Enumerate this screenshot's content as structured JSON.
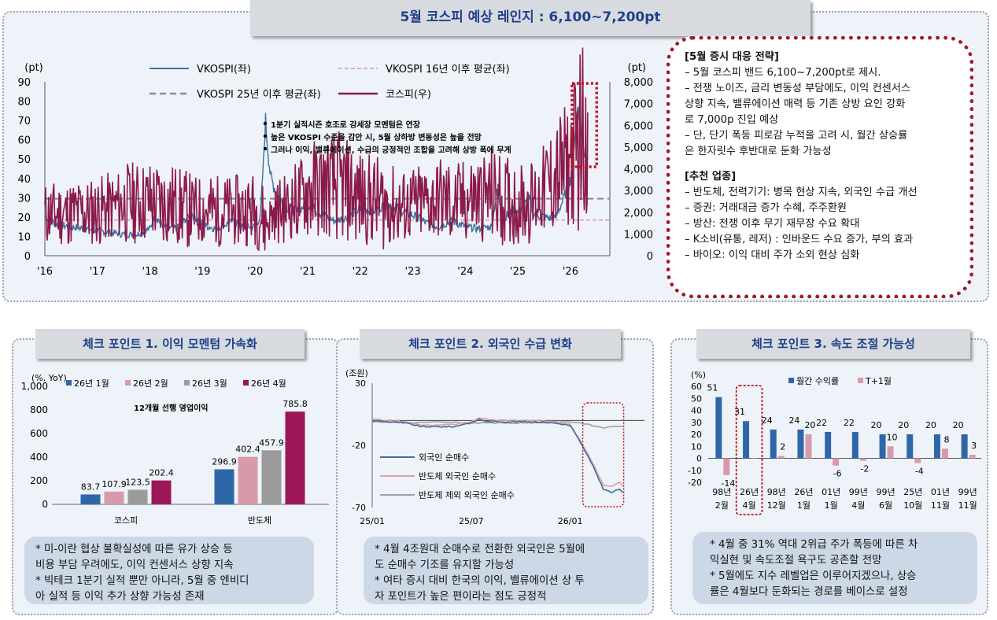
{
  "main_title": "5월 코스피 예상 레인지 : 6,100~7,200pt",
  "strategy": {
    "title": "[5월 증시 대응 전략]",
    "lines": [
      "– 5월 코스피 밴드 6,100~7,200pt로 제시.",
      "– 전쟁 노이즈, 금리 변동성 부담에도, 이익 컨센서스",
      "상향 지속, 밸류에이션 매력 등 기존 상방 요인 강화",
      "로 7,000p 진입 예상",
      "– 단, 단기 폭등 피로감 누적을 고려 시, 월간 상승률",
      "은 한자릿수 후반대로 둔화 가능성"
    ],
    "sector_title": "[추천 업종]",
    "sectors": [
      "– 반도체, 전력기기: 병목 현상 지속, 외국인 수급 개선",
      "– 증권: 거래대금 증가 수혜, 주주환원",
      "– 방산: 전쟁 이후 무기 재무장 수요 확대",
      "– K소비(유통, 레저) : 인바운드 수요 증가, 부의 효과",
      "– 바이오: 이익 대비 주가 소외 현상 심화"
    ]
  },
  "panels": [
    {
      "title": "체크 포인트 1. 이익 모멘텀 가속화",
      "notes": [
        "* 미-이란 협상 불확실성에 따른 유가 상승 등",
        "비용 부담 우려에도, 이익 컨센서스 상향 지속",
        "* 빅테크 1분기 실적 뿐만 아니라, 5월 중 엔비디",
        "아 실적 등 이익 추가 상향 가능성 존재"
      ]
    },
    {
      "title": "체크 포인트 2. 외국인 수급 변화",
      "notes": [
        "* 4월 4조원대 순매수로 전환한 외국인은 5월에",
        "도 순매수 기조를 유지할 가능성",
        "* 여타 증시 대비 한국의 이익, 밸류에이션 상 투",
        "자 포인트가 높은 편이라는 점도 긍정적"
      ]
    },
    {
      "title": "체크 포인트 3. 속도 조절 가능성",
      "notes": [
        "* 4월 중 31% 역대 2위급 주가 폭등에 따른 차",
        "익실현 및 속도조절 욕구도 공존할 전망",
        "* 5월에도 지수 레벨업은 이루어지겠으나, 상승",
        "률은 4월보다 둔화되는 경로를 베이스로 설정"
      ]
    }
  ],
  "chart_data": [
    {
      "type": "line",
      "left_unit": "(pt)",
      "right_unit": "(pt)",
      "left_ticks": [
        "0",
        "10",
        "20",
        "30",
        "40",
        "50",
        "60",
        "70",
        "80",
        "90"
      ],
      "right_ticks": [
        "0",
        "1,000",
        "2,000",
        "3,000",
        "4,000",
        "5,000",
        "6,000",
        "7,000",
        "8,000"
      ],
      "ylim_left": [
        0,
        90
      ],
      "ylim_right": [
        0,
        8000
      ],
      "x_ticks": [
        "'16",
        "'17",
        "'18",
        "'19",
        "'20",
        "'21",
        "'22",
        "'23",
        "'24",
        "'25",
        "'26"
      ],
      "legend": [
        "VKOSPI(좌)",
        "VKOSPI 16년 이후 평균(좌)",
        "VKOSPI 25년 이후 평균(좌)",
        "코스피(우)"
      ],
      "annotations": [
        "1분기 실적시즌 호조로 강세장 모멘텀은 연장",
        "높은 VKOSPI 수준을 감안 시, 5월 상하방 변동성은 높을 전망",
        "그러나 이익, 밸류에이션, 수급의 긍정적인 조합을 고려해 상방 폭에 무게"
      ],
      "averages": {
        "vkospi_since_2016": 18.5,
        "vkospi_since_2025": 29.5
      },
      "series": [
        {
          "name": "VKOSPI(좌)",
          "axis": "left",
          "points": [
            [
              2016.0,
              20
            ],
            [
              2016.25,
              16
            ],
            [
              2016.5,
              15
            ],
            [
              2016.75,
              14
            ],
            [
              2017.0,
              13
            ],
            [
              2017.25,
              12
            ],
            [
              2017.5,
              11
            ],
            [
              2017.75,
              11
            ],
            [
              2018.0,
              14
            ],
            [
              2018.1,
              21
            ],
            [
              2018.25,
              15
            ],
            [
              2018.5,
              14
            ],
            [
              2018.8,
              22
            ],
            [
              2019.0,
              16
            ],
            [
              2019.25,
              14
            ],
            [
              2019.6,
              18
            ],
            [
              2019.75,
              15
            ],
            [
              2020.0,
              15
            ],
            [
              2020.1,
              20
            ],
            [
              2020.2,
              69
            ],
            [
              2020.3,
              40
            ],
            [
              2020.45,
              30
            ],
            [
              2020.6,
              25
            ],
            [
              2020.8,
              23
            ],
            [
              2021.0,
              27
            ],
            [
              2021.25,
              22
            ],
            [
              2021.5,
              18
            ],
            [
              2021.75,
              20
            ],
            [
              2022.0,
              24
            ],
            [
              2022.25,
              23
            ],
            [
              2022.5,
              27
            ],
            [
              2022.75,
              24
            ],
            [
              2023.0,
              21
            ],
            [
              2023.25,
              17
            ],
            [
              2023.5,
              15
            ],
            [
              2023.75,
              18
            ],
            [
              2024.0,
              15
            ],
            [
              2024.25,
              14
            ],
            [
              2024.5,
              15
            ],
            [
              2024.6,
              32
            ],
            [
              2024.75,
              20
            ],
            [
              2024.95,
              25
            ],
            [
              2025.0,
              22
            ],
            [
              2025.2,
              30
            ],
            [
              2025.3,
              22
            ],
            [
              2025.5,
              20
            ],
            [
              2025.7,
              19
            ],
            [
              2025.85,
              28
            ],
            [
              2026.0,
              40
            ],
            [
              2026.15,
              80
            ],
            [
              2026.25,
              55
            ],
            [
              2026.33,
              50
            ]
          ]
        },
        {
          "name": "코스피(우)",
          "axis": "right",
          "points": [
            [
              2016.0,
              1900
            ],
            [
              2016.5,
              1980
            ],
            [
              2017.0,
              2050
            ],
            [
              2017.5,
              2400
            ],
            [
              2018.0,
              2500
            ],
            [
              2018.5,
              2300
            ],
            [
              2018.8,
              2050
            ],
            [
              2019.0,
              2100
            ],
            [
              2019.5,
              2050
            ],
            [
              2019.75,
              2100
            ],
            [
              2020.0,
              2200
            ],
            [
              2020.2,
              1500
            ],
            [
              2020.4,
              2000
            ],
            [
              2020.75,
              2400
            ],
            [
              2021.0,
              3000
            ],
            [
              2021.5,
              3250
            ],
            [
              2021.75,
              3000
            ],
            [
              2022.0,
              2700
            ],
            [
              2022.5,
              2350
            ],
            [
              2022.75,
              2200
            ],
            [
              2023.0,
              2300
            ],
            [
              2023.5,
              2600
            ],
            [
              2023.8,
              2350
            ],
            [
              2024.0,
              2600
            ],
            [
              2024.5,
              2750
            ],
            [
              2024.75,
              2550
            ],
            [
              2024.95,
              2400
            ],
            [
              2025.3,
              2500
            ],
            [
              2025.5,
              3100
            ],
            [
              2025.75,
              3600
            ],
            [
              2026.0,
              4300
            ],
            [
              2026.15,
              5300
            ],
            [
              2026.2,
              5900
            ],
            [
              2026.25,
              5300
            ],
            [
              2026.33,
              6600
            ]
          ]
        }
      ]
    },
    {
      "type": "bar",
      "unit": "(%, YoY)",
      "subtitle": "12개월 선행 영업이익",
      "categories": [
        "코스피",
        "반도체"
      ],
      "ylim": [
        0,
        1000
      ],
      "y_ticks": [
        "0",
        "200",
        "400",
        "600",
        "800",
        "1,000"
      ],
      "series": [
        {
          "name": "26년 1월",
          "values": [
            83.7,
            296.9
          ],
          "labels": [
            "83.7",
            "296.9"
          ]
        },
        {
          "name": "26년 2월",
          "values": [
            107.9,
            402.4
          ],
          "labels": [
            "107.9",
            "402.4"
          ]
        },
        {
          "name": "26년 3월",
          "values": [
            123.5,
            457.9
          ],
          "labels": [
            "123.5",
            "457.9"
          ]
        },
        {
          "name": "26년 4월",
          "values": [
            202.4,
            785.8
          ],
          "labels": [
            "202.4",
            "785.8"
          ]
        }
      ]
    },
    {
      "type": "line",
      "unit": "(조원)",
      "ylim": [
        -70,
        30
      ],
      "y_ticks": [
        "-70",
        "-20",
        "30"
      ],
      "x_ticks": [
        "25/01",
        "25/07",
        "26/01"
      ],
      "series": [
        {
          "name": "외국인 순매수",
          "points": [
            [
              0,
              0
            ],
            [
              1,
              -1
            ],
            [
              2,
              -2
            ],
            [
              3,
              -5
            ],
            [
              4,
              -5
            ],
            [
              5,
              -5
            ],
            [
              5.5,
              -3
            ],
            [
              6,
              -2
            ],
            [
              6.5,
              1
            ],
            [
              7,
              -1
            ],
            [
              8,
              -1
            ],
            [
              9,
              -1
            ],
            [
              10,
              -1
            ],
            [
              11,
              -2
            ],
            [
              12,
              -4
            ],
            [
              12.5,
              -15
            ],
            [
              13,
              -27
            ],
            [
              13.5,
              -40
            ],
            [
              14,
              -55
            ],
            [
              14.5,
              -58
            ],
            [
              15,
              -55
            ],
            [
              15.2,
              -58
            ]
          ]
        },
        {
          "name": "반도체 외국인 순매수",
          "points": [
            [
              0,
              1
            ],
            [
              1,
              0
            ],
            [
              2,
              -1
            ],
            [
              3,
              -4
            ],
            [
              4,
              -4
            ],
            [
              5,
              -3
            ],
            [
              5.5,
              -2
            ],
            [
              6,
              -1
            ],
            [
              6.5,
              2
            ],
            [
              7,
              1
            ],
            [
              8,
              0
            ],
            [
              9,
              0
            ],
            [
              10,
              0
            ],
            [
              11,
              -1
            ],
            [
              12,
              -3
            ],
            [
              12.5,
              -14
            ],
            [
              13,
              -25
            ],
            [
              13.5,
              -38
            ],
            [
              14,
              -52
            ],
            [
              14.5,
              -53
            ],
            [
              15,
              -50
            ],
            [
              15.2,
              -53
            ]
          ]
        },
        {
          "name": "반도체 제외 외국인 순매수",
          "points": [
            [
              0,
              -1
            ],
            [
              2,
              -2
            ],
            [
              4,
              -1
            ],
            [
              6,
              -2
            ],
            [
              8,
              -2
            ],
            [
              10,
              -2
            ],
            [
              11,
              -1
            ],
            [
              12,
              -1
            ],
            [
              13,
              -3
            ],
            [
              14,
              -6
            ],
            [
              14.5,
              -5
            ],
            [
              15,
              -5
            ],
            [
              15.2,
              -5
            ]
          ]
        }
      ]
    },
    {
      "type": "bar",
      "unit": "(%)",
      "ylim": [
        -20,
        60
      ],
      "y_ticks": [
        "-20",
        "-10",
        "0",
        "10",
        "20",
        "30",
        "40",
        "50",
        "60"
      ],
      "categories": [
        "98년 2월",
        "26년 4월",
        "98년 12월",
        "26년 1월",
        "01년 1월",
        "99년 4월",
        "99년 6월",
        "25년 10월",
        "01년 11월",
        "99년 11월"
      ],
      "category_top": [
        "98년",
        "26년",
        "98년",
        "26년",
        "01년",
        "99년",
        "99년",
        "25년",
        "01년",
        "99년"
      ],
      "category_bottom": [
        "2월",
        "4월",
        "12월",
        "1월",
        "1월",
        "4월",
        "6월",
        "10월",
        "11월",
        "11월"
      ],
      "series": [
        {
          "name": "월간 수익률",
          "values": [
            51,
            31,
            24,
            24,
            22,
            22,
            20,
            20,
            20,
            20
          ],
          "labels": [
            "51",
            "31",
            "24",
            "24",
            "22",
            "22",
            "20",
            "20",
            "20",
            "20"
          ]
        },
        {
          "name": "T+1월",
          "values": [
            -14,
            0,
            2,
            20,
            -6,
            -2,
            10,
            -4,
            8,
            3
          ],
          "labels": [
            "-14",
            "",
            "2",
            "20",
            "-6",
            "-2",
            "10",
            "-4",
            "8",
            "3"
          ]
        }
      ]
    }
  ],
  "colors": {
    "title": "#1f3f8a",
    "vkospi": "#3e6f9d",
    "kospi": "#8b1a4a",
    "avg16": "#d995aa",
    "avg25": "#8c8c8c",
    "highlight": "#c0141e",
    "bar_jan": "#2f66a8",
    "bar_feb": "#d79aab",
    "bar_mar": "#9b9b9b",
    "bar_apr": "#9c1758",
    "ret": "#2f66a8",
    "t1": "#d79aab"
  }
}
